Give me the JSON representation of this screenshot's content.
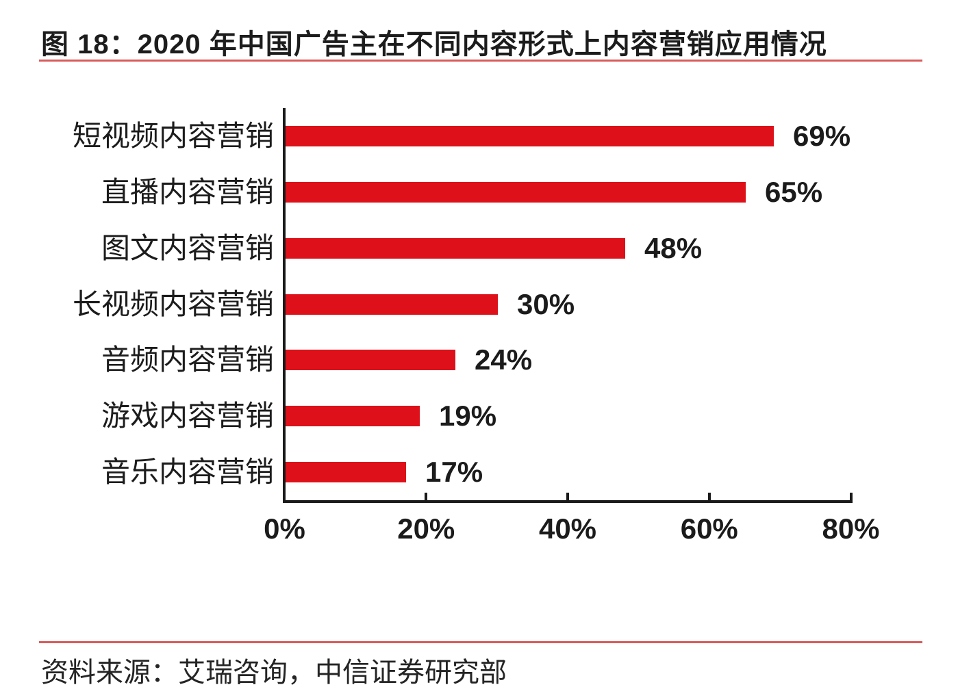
{
  "figure": {
    "title": "图 18：2020 年中国广告主在不同内容形式上内容营销应用情况",
    "source": "资料来源：艾瑞咨询，中信证券研究部"
  },
  "colors": {
    "bar": "#de1019",
    "rule": "#d95b5b",
    "axis": "#1a1a1a",
    "text": "#1c1c1c"
  },
  "chart_data": {
    "type": "bar",
    "orientation": "horizontal",
    "title": "2020 年中国广告主在不同内容形式上内容营销应用情况",
    "categories": [
      "短视频内容营销",
      "直播内容营销",
      "图文内容营销",
      "长视频内容营销",
      "音频内容营销",
      "游戏内容营销",
      "音乐内容营销"
    ],
    "values": [
      69,
      65,
      48,
      30,
      24,
      19,
      17
    ],
    "data_labels": [
      "69%",
      "65%",
      "48%",
      "30%",
      "24%",
      "19%",
      "17%"
    ],
    "x_tick_labels": [
      "0%",
      "20%",
      "40%",
      "60%",
      "80%"
    ],
    "xlim": [
      0,
      80
    ],
    "xlabel": "",
    "ylabel": "",
    "grid": false,
    "legend": false
  }
}
